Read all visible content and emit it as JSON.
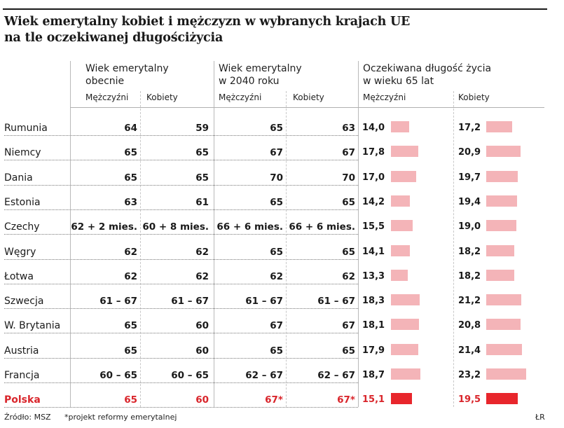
{
  "title_line1": "Wiek emerytalny kobiet i mężczyzn w wybranych krajach UE",
  "title_line2": "na tle oczekiwanej długościżycia",
  "groups": {
    "current": [
      "Wiek emerytalny",
      "obecnie"
    ],
    "y2040": [
      "Wiek emerytalny",
      "w 2040 roku"
    ],
    "life": [
      "Oczekiwana długość życia",
      "w wieku 65 lat"
    ]
  },
  "subheaders": {
    "men": "Mężczyźni",
    "women": "Kobiety"
  },
  "chart_data": {
    "type": "table",
    "title": "Wiek emerytalny kobiet i mężczyzn w wybranych krajach UE na tle oczekiwanej długościżycia",
    "columns": [
      "Wiek emerytalny obecnie — Mężczyźni",
      "Wiek emerytalny obecnie — Kobiety",
      "Wiek emerytalny w 2040 roku — Mężczyźni",
      "Wiek emerytalny w 2040 roku — Kobiety",
      "Oczekiwana długość życia w wieku 65 lat — Mężczyźni",
      "Oczekiwana długość życia w wieku 65 lat — Kobiety"
    ],
    "bar_color": "#f4b4b8",
    "highlight_color": "#e8262c",
    "rows": [
      {
        "country": "Rumunia",
        "cur_m": "64",
        "cur_k": "59",
        "f_m": "65",
        "f_k": "63",
        "le_m": "14,0",
        "le_k": "17,2",
        "le_m_v": 14.0,
        "le_k_v": 17.2
      },
      {
        "country": "Niemcy",
        "cur_m": "65",
        "cur_k": "65",
        "f_m": "67",
        "f_k": "67",
        "le_m": "17,8",
        "le_k": "20,9",
        "le_m_v": 17.8,
        "le_k_v": 20.9
      },
      {
        "country": "Dania",
        "cur_m": "65",
        "cur_k": "65",
        "f_m": "70",
        "f_k": "70",
        "le_m": "17,0",
        "le_k": "19,7",
        "le_m_v": 17.0,
        "le_k_v": 19.7
      },
      {
        "country": "Estonia",
        "cur_m": "63",
        "cur_k": "61",
        "f_m": "65",
        "f_k": "65",
        "le_m": "14,2",
        "le_k": "19,4",
        "le_m_v": 14.2,
        "le_k_v": 19.4
      },
      {
        "country": "Czechy",
        "cur_m": "62 + 2 mies.",
        "cur_k": "60 + 8 mies.",
        "f_m": "66 + 6 mies.",
        "f_k": "66 + 6 mies.",
        "le_m": "15,5",
        "le_k": "19,0",
        "le_m_v": 15.5,
        "le_k_v": 19.0
      },
      {
        "country": "Węgry",
        "cur_m": "62",
        "cur_k": "62",
        "f_m": "65",
        "f_k": "65",
        "le_m": "14,1",
        "le_k": "18,2",
        "le_m_v": 14.1,
        "le_k_v": 18.2
      },
      {
        "country": "Łotwa",
        "cur_m": "62",
        "cur_k": "62",
        "f_m": "62",
        "f_k": "62",
        "le_m": "13,3",
        "le_k": "18,2",
        "le_m_v": 13.3,
        "le_k_v": 18.2
      },
      {
        "country": "Szwecja",
        "cur_m": "61 – 67",
        "cur_k": "61 – 67",
        "f_m": "61 – 67",
        "f_k": "61 – 67",
        "le_m": "18,3",
        "le_k": "21,2",
        "le_m_v": 18.3,
        "le_k_v": 21.2
      },
      {
        "country": "W. Brytania",
        "cur_m": "65",
        "cur_k": "60",
        "f_m": "67",
        "f_k": "67",
        "le_m": "18,1",
        "le_k": "20,8",
        "le_m_v": 18.1,
        "le_k_v": 20.8
      },
      {
        "country": "Austria",
        "cur_m": "65",
        "cur_k": "60",
        "f_m": "65",
        "f_k": "65",
        "le_m": "17,9",
        "le_k": "21,4",
        "le_m_v": 17.9,
        "le_k_v": 21.4
      },
      {
        "country": "Francja",
        "cur_m": "60 – 65",
        "cur_k": "60 – 65",
        "f_m": "62 – 67",
        "f_k": "62 – 67",
        "le_m": "18,7",
        "le_k": "23,2",
        "le_m_v": 18.7,
        "le_k_v": 23.2
      },
      {
        "country": "Polska",
        "cur_m": "65",
        "cur_k": "60",
        "f_m": "67*",
        "f_k": "67*",
        "le_m": "15,1",
        "le_k": "19,5",
        "le_m_v": 15.1,
        "le_k_v": 19.5,
        "highlight": true
      }
    ]
  },
  "footer": {
    "source": "Źródło: MSZ",
    "note": "*projekt reformy emerytalnej",
    "credit": "ŁR"
  }
}
